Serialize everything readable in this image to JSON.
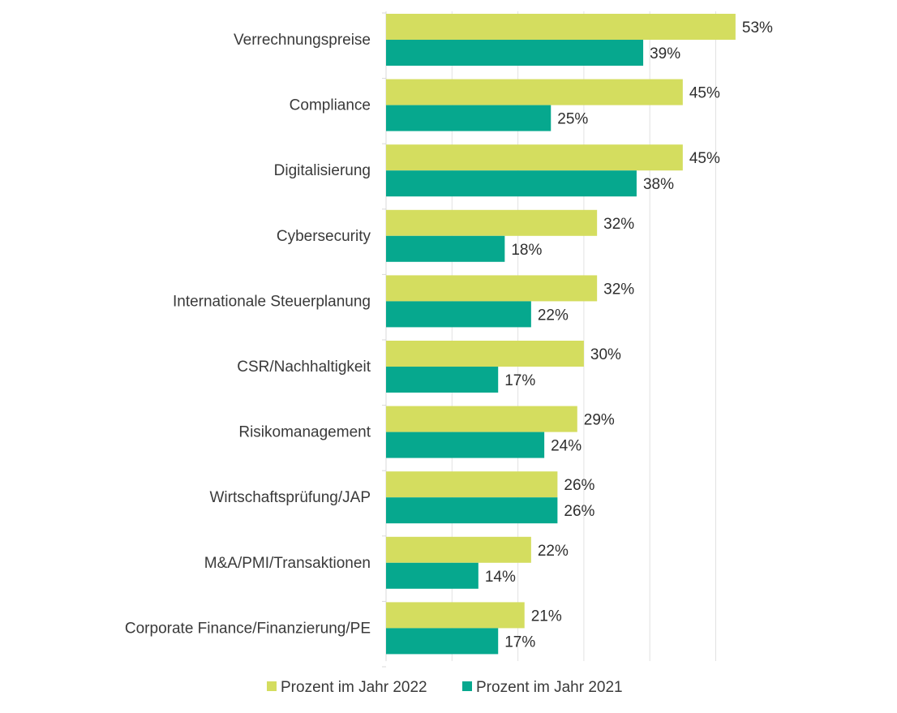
{
  "chart_data": {
    "type": "bar",
    "orientation": "horizontal",
    "title": "",
    "xlabel": "",
    "ylabel": "",
    "xlim": [
      0,
      60
    ],
    "grid": true,
    "legend_position": "bottom",
    "categories": [
      "Verrechnungspreise",
      "Compliance",
      "Digitalisierung",
      "Cybersecurity",
      "Internationale Steuerplanung",
      "CSR/Nachhaltigkeit",
      "Risikomanagement",
      "Wirtschaftsprüfung/JAP",
      "M&A/PMI/Transaktionen",
      "Corporate Finance/Finanzierung/PE"
    ],
    "series": [
      {
        "name": "Prozent im Jahr 2022",
        "color": "#d4dd5f",
        "values": [
          53,
          45,
          45,
          32,
          32,
          30,
          29,
          26,
          22,
          21
        ]
      },
      {
        "name": "Prozent im Jahr 2021",
        "color": "#06a88e",
        "values": [
          39,
          25,
          38,
          18,
          22,
          17,
          24,
          26,
          14,
          17
        ]
      }
    ],
    "value_suffix": "%"
  }
}
